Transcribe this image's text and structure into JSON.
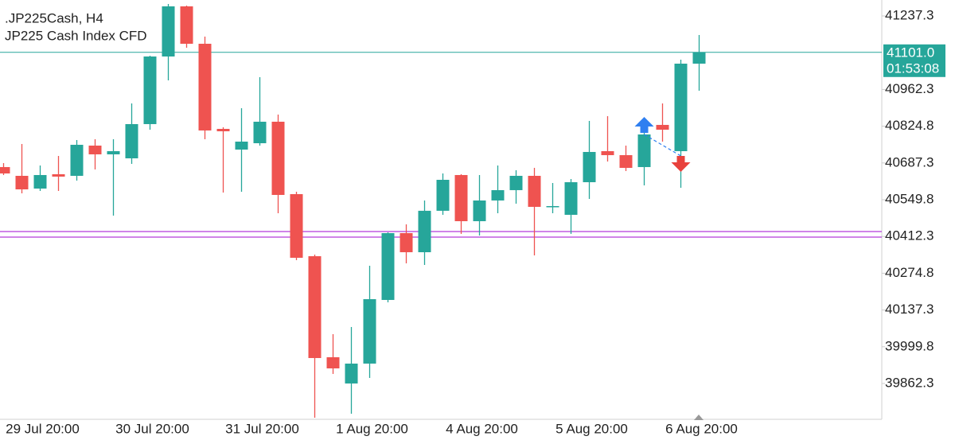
{
  "chart_data": {
    "type": "candlestick",
    "title": ".JP225Cash, H4",
    "subtitle": "JP225 Cash Index CFD",
    "categories": [
      null,
      null,
      "29 Jul 20:00",
      null,
      null,
      null,
      null,
      null,
      "30 Jul 20:00",
      null,
      null,
      null,
      null,
      null,
      "31 Jul 20:00",
      null,
      null,
      null,
      null,
      null,
      "1 Aug 20:00",
      null,
      null,
      null,
      null,
      null,
      "4 Aug 20:00",
      null,
      null,
      null,
      null,
      null,
      "5 Aug 20:00",
      null,
      null,
      null,
      null,
      null,
      "6 Aug 20:00"
    ],
    "open": [
      40671.9,
      40639.1,
      40591.5,
      40645.1,
      40639.1,
      40752.2,
      40719.5,
      40704.6,
      40832.6,
      41085.5,
      41273.0,
      41133.1,
      40814.7,
      40737.3,
      40761.1,
      40841.5,
      40570.7,
      40338.5,
      39960.6,
      39862.4,
      39936.8,
      40174.9,
      40424.8,
      40353.4,
      40508.4,
      40642.1,
      40469.5,
      40546.9,
      40585.6,
      40639.1,
      40523.1,
      40493.3,
      40615.3,
      40731.4,
      40716.5,
      40671.9,
      40829.6,
      40731.4,
      41058.7
    ],
    "high": [
      40686.7,
      40758.2,
      40677.8,
      40713.5,
      40773.0,
      40776.0,
      40776.0,
      40909.9,
      41088.5,
      41281.9,
      41276.0,
      41159.9,
      40820.7,
      40892.1,
      41008.1,
      40868.3,
      40579.6,
      40344.5,
      40046.9,
      40073.7,
      40302.8,
      40427.8,
      40457.6,
      40546.9,
      40648.1,
      40645.1,
      40642.1,
      40677.8,
      40660.0,
      40669.0,
      40612.3,
      40627.2,
      40844.5,
      40862.3,
      40752.2,
      40814.7,
      40909.9,
      41073.6,
      41165.9
    ],
    "low": [
      40642.1,
      40573.6,
      40582.6,
      40582.6,
      40621.3,
      40663.0,
      40490.3,
      40683.8,
      40811.7,
      40996.2,
      41118.3,
      40776.0,
      40576.6,
      40579.6,
      40752.2,
      40499.2,
      40323.7,
      39734.4,
      39898.1,
      39749.3,
      39883.2,
      40166.0,
      40311.8,
      40305.8,
      40493.3,
      40421.9,
      40415.9,
      40499.2,
      40535.0,
      40341.5,
      40499.2,
      40421.9,
      40552.8,
      40692.7,
      40657.0,
      40603.4,
      40767.1,
      40594.5,
      40957.5
    ],
    "close": [
      40648.0,
      40588.5,
      40642.1,
      40636.2,
      40755.2,
      40719.5,
      40731.4,
      40832.6,
      41085.5,
      41273.0,
      41133.1,
      40808.8,
      40805.8,
      40767.1,
      40841.5,
      40567.7,
      40332.6,
      39957.6,
      39918.9,
      39936.8,
      40177.8,
      40424.8,
      40353.4,
      40508.4,
      40624.2,
      40469.5,
      40546.9,
      40585.6,
      40639.1,
      40523.1,
      40526.0,
      40615.3,
      40728.4,
      40716.5,
      40668.9,
      40793.9,
      40811.7,
      41058.7,
      41101.0
    ],
    "up_color": "#26a69a",
    "down_color": "#ef5350",
    "ylim": [
      39728.4,
      41296.8
    ],
    "yticks": [
      41237.3,
      40962.3,
      40824.8,
      40687.3,
      40549.8,
      40412.3,
      40274.8,
      40137.3,
      39999.8,
      39862.3
    ],
    "last_price": {
      "value": 41101,
      "label": "41101.0",
      "color": "#26a69a"
    },
    "timer": "01:53:08",
    "hlines": [
      {
        "value": 40430.8,
        "color": "#c05be0"
      },
      {
        "value": 40410.0,
        "color": "#c05be0"
      }
    ],
    "markers": [
      {
        "index": 35,
        "value": 40793.9,
        "direction": "up",
        "color": "#2f7ff0"
      },
      {
        "index": 37,
        "value": 40731.4,
        "direction": "down",
        "color": "#e8413c"
      }
    ]
  }
}
